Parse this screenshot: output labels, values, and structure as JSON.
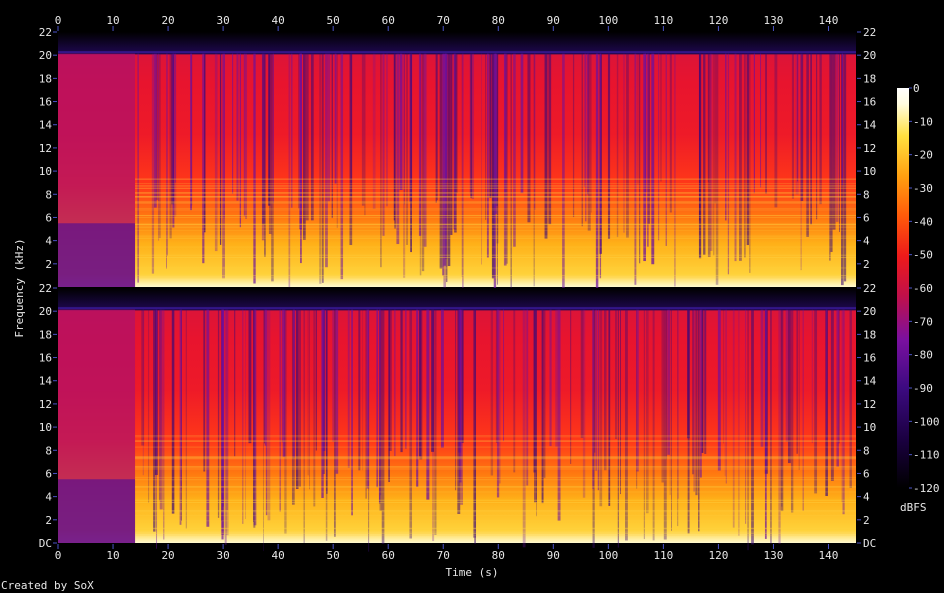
{
  "footer": {
    "creator": "Created by SoX"
  },
  "chart_data": {
    "type": "heatmap",
    "subtype": "spectrogram",
    "title": "",
    "xlabel": "Time (s)",
    "ylabel": "Frequency (kHz)",
    "colorbar_label": "dBFS",
    "xlim": [
      0,
      145
    ],
    "ylim_khz": [
      0,
      22
    ],
    "x_ticks": [
      "0",
      "10",
      "20",
      "30",
      "40",
      "50",
      "60",
      "70",
      "80",
      "90",
      "100",
      "110",
      "120",
      "130",
      "140"
    ],
    "y_ticks_top": [
      "2",
      "4",
      "6",
      "8",
      "10",
      "12",
      "14",
      "16",
      "18",
      "20",
      "22"
    ],
    "y_ticks_bottom": [
      "DC",
      "2",
      "4",
      "6",
      "8",
      "10",
      "12",
      "14",
      "16",
      "18",
      "20",
      "22"
    ],
    "colorbar_ticks": [
      "0",
      "-10",
      "-20",
      "-30",
      "-40",
      "-50",
      "-60",
      "-70",
      "-80",
      "-90",
      "-100",
      "-110",
      "-120"
    ],
    "colorbar_range_dbfs": [
      -120,
      0
    ],
    "channels": [
      {
        "channel": "upper"
      },
      {
        "channel": "lower"
      }
    ],
    "palette": [
      "#000000",
      "#1a0040",
      "#3c0a80",
      "#7a10a0",
      "#c0104a",
      "#ee1a1a",
      "#ff5a0a",
      "#ffa010",
      "#ffe040",
      "#fffce0",
      "#ffffff"
    ],
    "tick_color": "#4a52c8",
    "label_color": "#e8e8e8"
  }
}
